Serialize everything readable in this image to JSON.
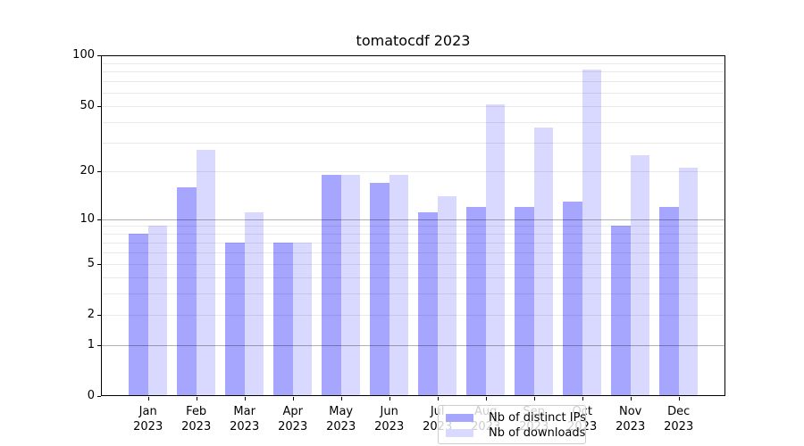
{
  "title": "tomatocdf 2023",
  "chart_data": {
    "type": "bar",
    "title": "tomatocdf 2023",
    "categories": [
      "Jan 2023",
      "Feb 2023",
      "Mar 2023",
      "Apr 2023",
      "May 2023",
      "Jun 2023",
      "Jul 2023",
      "Aug 2023",
      "Sep 2023",
      "Oct 2023",
      "Nov 2023",
      "Dec 2023"
    ],
    "series": [
      {
        "name": "Nb of distinct IPs",
        "color": "#a6a6ff",
        "values": [
          8,
          16,
          7,
          7,
          19,
          17,
          11,
          12,
          12,
          13,
          9,
          12
        ]
      },
      {
        "name": "Nb of downloads",
        "color": "#d9d9ff",
        "values": [
          9,
          27,
          11,
          7,
          19,
          19,
          14,
          51,
          37,
          82,
          25,
          21
        ]
      }
    ],
    "xlabel": "",
    "ylabel": "",
    "yscale": "log1p",
    "ylim": [
      0,
      100
    ],
    "yticks": {
      "values": [
        0,
        1,
        2,
        5,
        10,
        20,
        50,
        100
      ],
      "labels": [
        "0",
        "1",
        "2",
        "5",
        "10",
        "20",
        "50",
        "100"
      ]
    },
    "gridlines": {
      "major": [
        1,
        10
      ],
      "minor": [
        2,
        3,
        4,
        5,
        6,
        7,
        8,
        9,
        20,
        30,
        40,
        50,
        60,
        70,
        80,
        90
      ]
    },
    "grid": true,
    "legend_position": "lower center"
  },
  "legend": {
    "items": [
      {
        "label": "Nb of distinct IPs",
        "color": "#a6a6ff"
      },
      {
        "label": "Nb of downloads",
        "color": "#d9d9ff"
      }
    ]
  }
}
